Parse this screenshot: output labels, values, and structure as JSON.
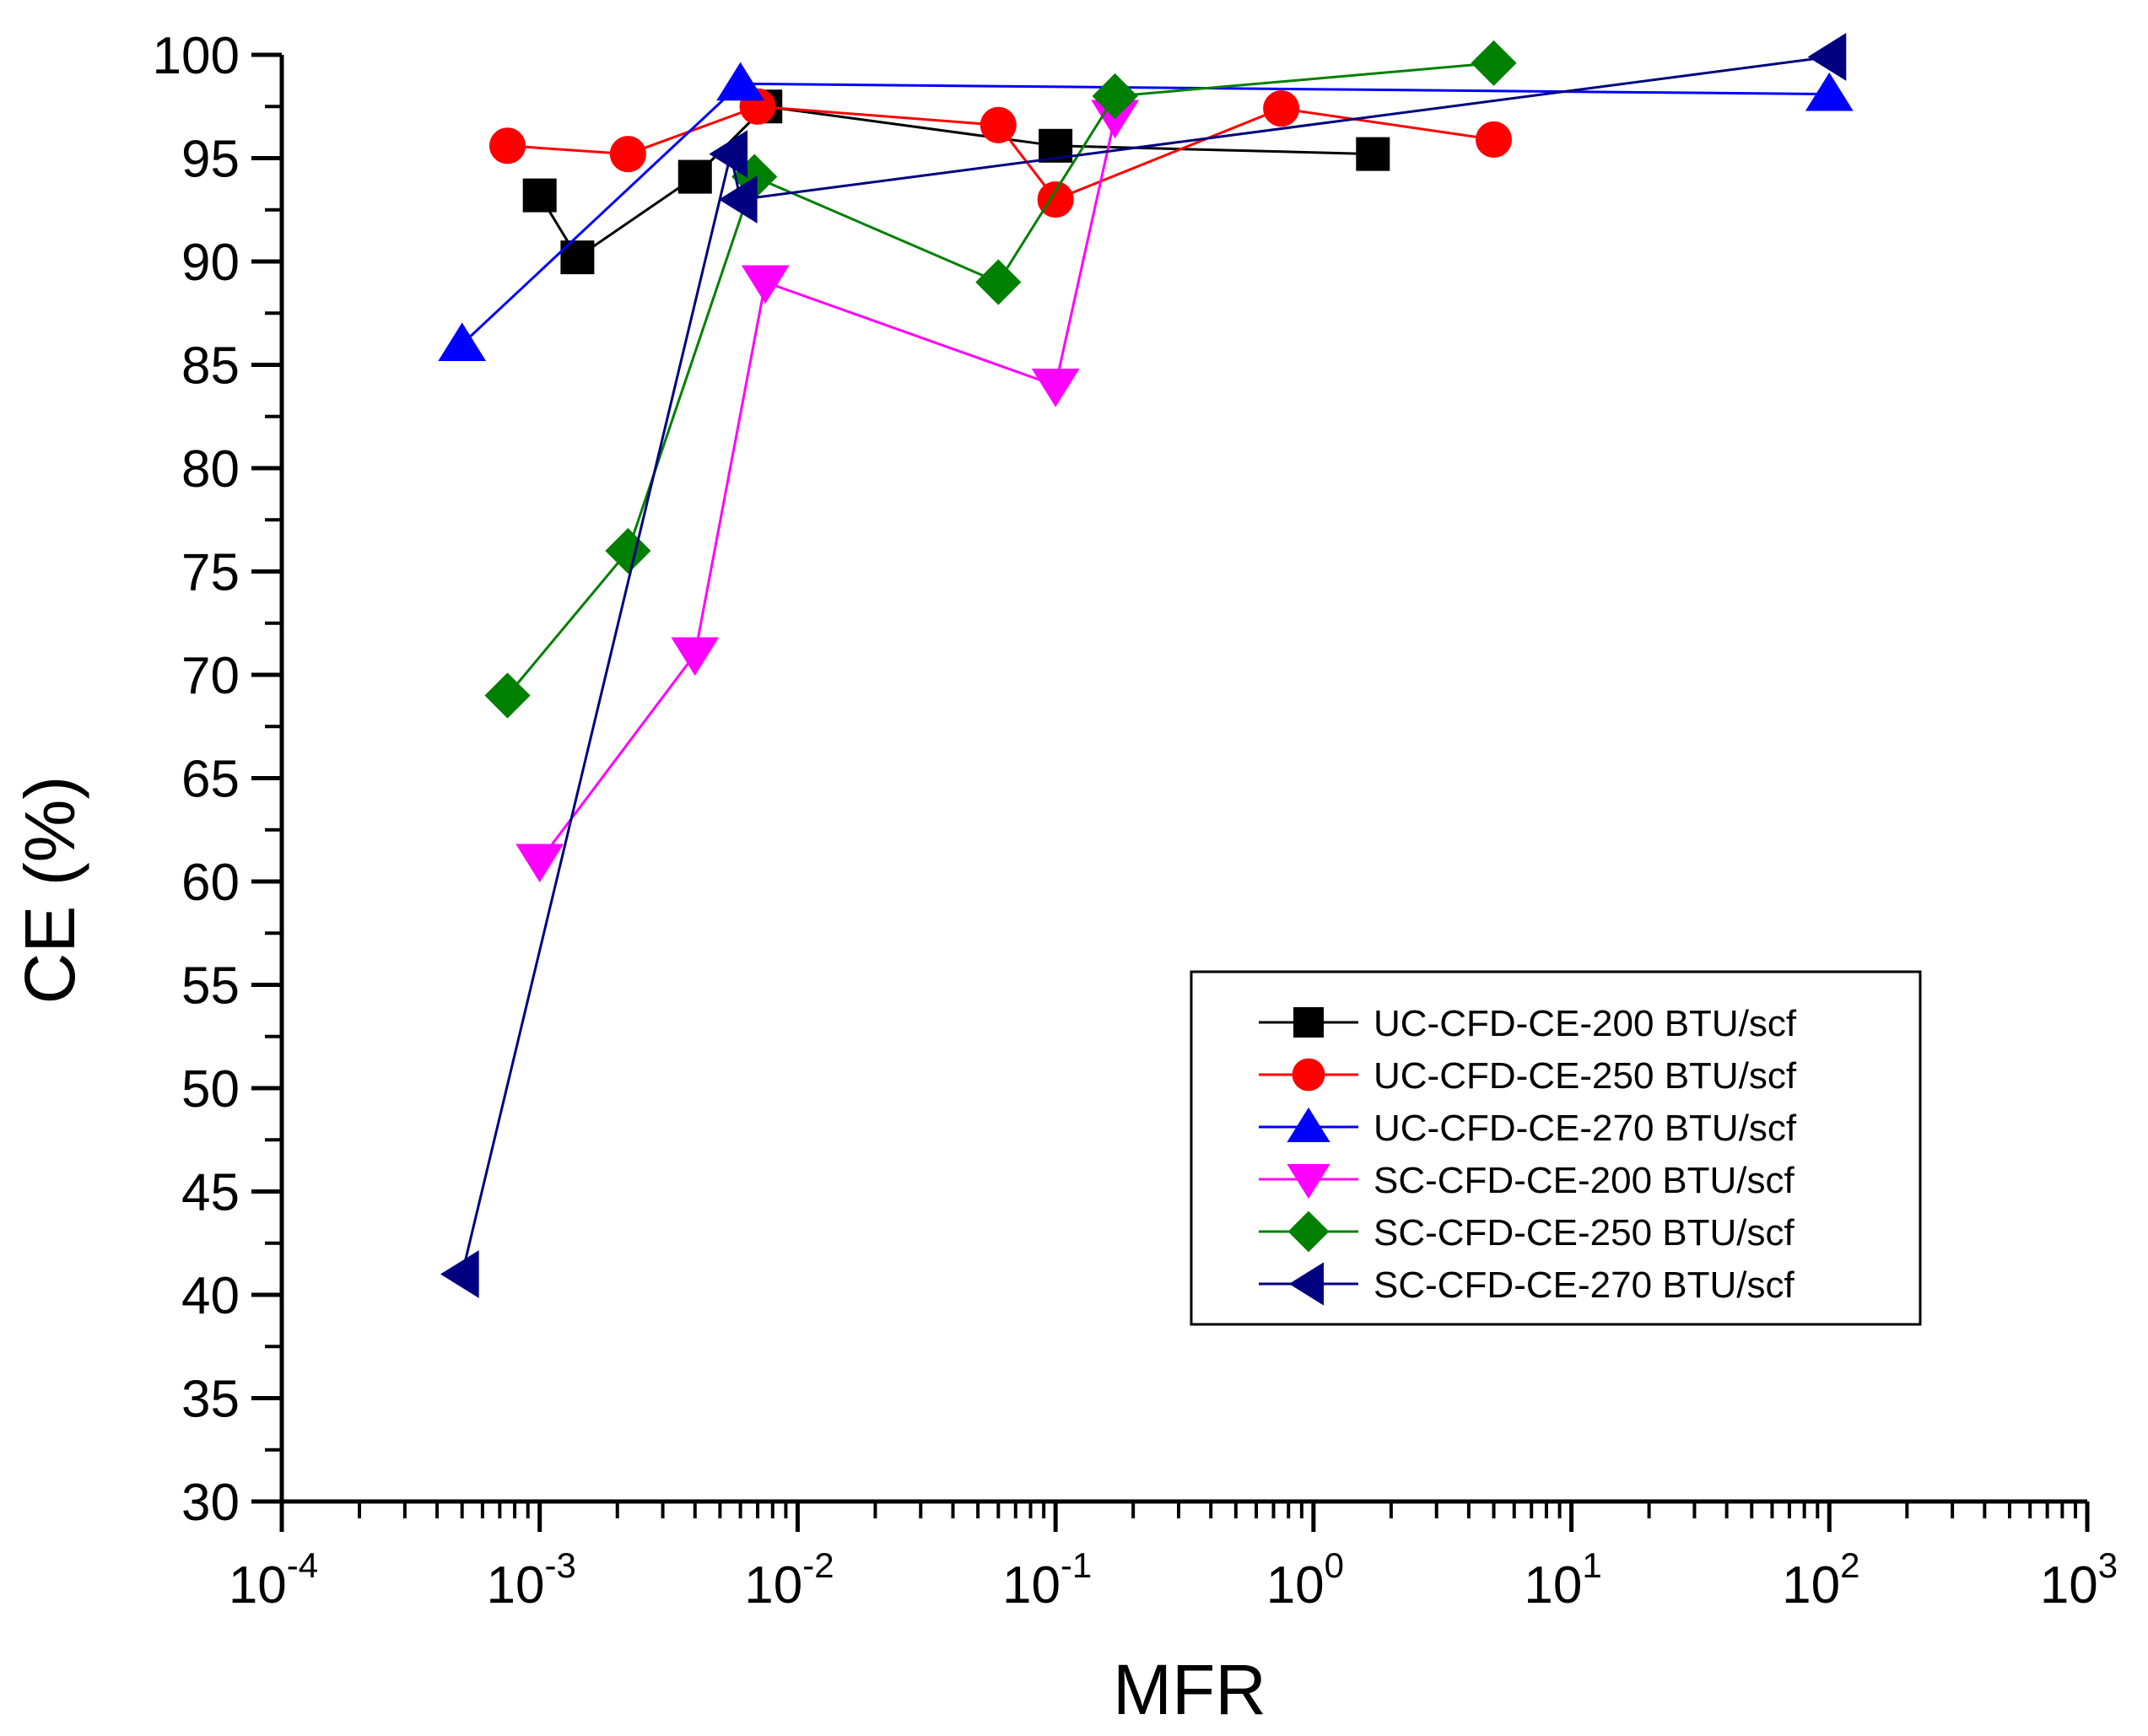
{
  "chart_data": {
    "type": "line",
    "xscale": "log",
    "xlabel": "MFR",
    "ylabel": "CE (%)",
    "xlim": [
      0.0001,
      1000
    ],
    "ylim": [
      30,
      100
    ],
    "x_ticks": [
      {
        "value": 0.0001,
        "base": "10",
        "exp": "-4"
      },
      {
        "value": 0.001,
        "base": "10",
        "exp": "-3"
      },
      {
        "value": 0.01,
        "base": "10",
        "exp": "-2"
      },
      {
        "value": 0.1,
        "base": "10",
        "exp": "-1"
      },
      {
        "value": 1,
        "base": "10",
        "exp": "0"
      },
      {
        "value": 10,
        "base": "10",
        "exp": "1"
      },
      {
        "value": 100,
        "base": "10",
        "exp": "2"
      },
      {
        "value": 1000,
        "base": "10",
        "exp": "3"
      }
    ],
    "y_ticks": [
      30,
      35,
      40,
      45,
      50,
      55,
      60,
      65,
      70,
      75,
      80,
      85,
      90,
      95,
      100
    ],
    "grid": false,
    "legend_position": "lower-right",
    "series": [
      {
        "name": "UC-CFD-CE-200 BTU/scf",
        "color": "#000000",
        "marker": "square",
        "x": [
          0.001,
          0.0014,
          0.004,
          0.0075,
          0.1,
          1.7
        ],
        "y": [
          93.2,
          90.2,
          94.1,
          97.5,
          95.6,
          95.2
        ]
      },
      {
        "name": "UC-CFD-CE-250 BTU/scf",
        "color": "#ff0000",
        "marker": "circle",
        "x": [
          0.00075,
          0.0022,
          0.007,
          0.06,
          0.1,
          0.75,
          5
        ],
        "y": [
          95.6,
          95.2,
          97.5,
          96.6,
          93.0,
          97.4,
          95.9
        ]
      },
      {
        "name": "UC-CFD-CE-270 BTU/scf",
        "color": "#0000ff",
        "marker": "triangle-up",
        "x": [
          0.0005,
          0.006,
          100
        ],
        "y": [
          86,
          98.6,
          98.1
        ]
      },
      {
        "name": "SC-CFD-CE-200 BTU/scf",
        "color": "#ff00ff",
        "marker": "triangle-down",
        "x": [
          0.001,
          0.004,
          0.0075,
          0.1,
          0.17
        ],
        "y": [
          61,
          71,
          89,
          84,
          97
        ]
      },
      {
        "name": "SC-CFD-CE-250 BTU/scf",
        "color": "#008000",
        "marker": "diamond",
        "x": [
          0.00075,
          0.0022,
          0.0068,
          0.06,
          0.17,
          5
        ],
        "y": [
          69,
          76,
          94.1,
          89,
          98,
          99.6
        ]
      },
      {
        "name": "SC-CFD-CE-270 BTU/scf",
        "color": "#000080",
        "marker": "triangle-left",
        "x": [
          0.0005,
          0.0055,
          0.006,
          100
        ],
        "y": [
          41,
          95.2,
          93,
          99.9
        ]
      }
    ]
  }
}
